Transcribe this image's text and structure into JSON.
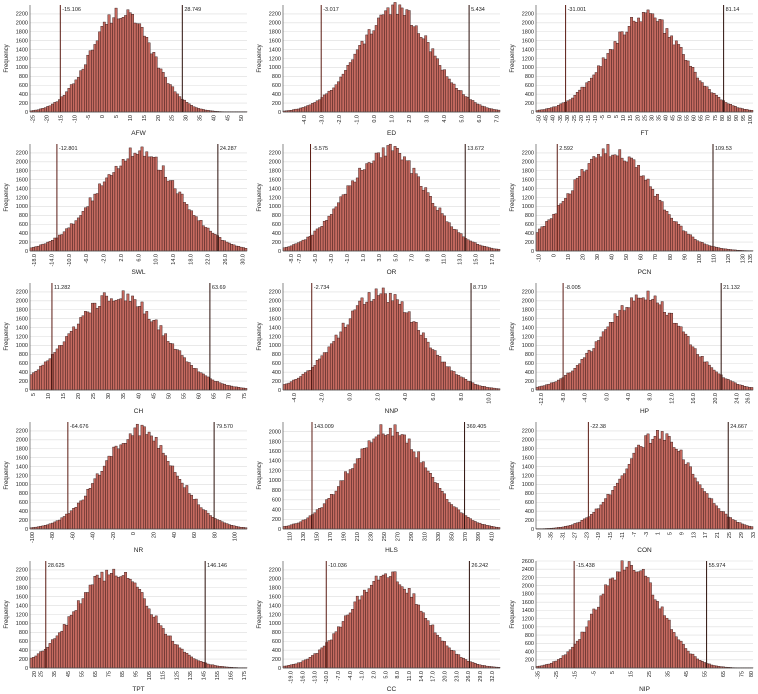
{
  "chart_data": [
    {
      "type": "bar",
      "xlabel": "AFW",
      "ylabel": "Frequency",
      "ylim": [
        0,
        2400
      ],
      "yticks": [
        0,
        200,
        400,
        600,
        800,
        1000,
        1200,
        1400,
        1600,
        1800,
        2000,
        2200
      ],
      "xlim": [
        -26,
        52
      ],
      "xticks": [
        "-25",
        "-20",
        "-15",
        "-10",
        "-5",
        "0",
        "5",
        "10",
        "15",
        "20",
        "25",
        "30",
        "35",
        "40",
        "45",
        "50"
      ],
      "mean": 6.8,
      "sd": 10.9,
      "peak": 2250,
      "lower": {
        "label": "-15.106",
        "value": -15.106
      },
      "upper": {
        "label": "28.749",
        "value": 28.749
      }
    },
    {
      "type": "bar",
      "xlabel": "ED",
      "ylabel": "Frequency",
      "ylim": [
        0,
        2400
      ],
      "yticks": [
        0,
        200,
        400,
        600,
        800,
        1000,
        1200,
        1400,
        1600,
        1800,
        2000,
        2200
      ],
      "xlim": [
        -5.2,
        7.2
      ],
      "xticks": [
        "-4.0",
        "-3.0",
        "-2.0",
        "-1.0",
        "0.0",
        "1.0",
        "2.0",
        "3.0",
        "4.0",
        "5.0",
        "6.0",
        "7.0"
      ],
      "mean": 1.2,
      "sd": 2.1,
      "peak": 2300,
      "lower": {
        "label": "-3.017",
        "value": -3.017
      },
      "upper": {
        "label": "5.434",
        "value": 5.434
      }
    },
    {
      "type": "bar",
      "xlabel": "FT",
      "ylabel": "Frequency",
      "ylim": [
        0,
        2400
      ],
      "yticks": [
        0,
        200,
        400,
        600,
        800,
        1000,
        1200,
        1400,
        1600,
        1800,
        2000,
        2200
      ],
      "xlim": [
        -52,
        102
      ],
      "xticks": [
        "-50",
        "-45",
        "-40",
        "-35",
        "-30",
        "-25",
        "-20",
        "-15",
        "-10",
        "-5",
        "0",
        "5",
        "10",
        "15",
        "20",
        "25",
        "30",
        "35",
        "40",
        "45",
        "50",
        "55",
        "60",
        "65",
        "70",
        "75",
        "80",
        "85",
        "90",
        "95",
        "100"
      ],
      "mean": 25.5,
      "sd": 26.7,
      "peak": 2150,
      "lower": {
        "label": "-31.001",
        "value": -31.001
      },
      "upper": {
        "label": "81.14",
        "value": 81.14
      }
    },
    {
      "type": "bar",
      "xlabel": "SWL",
      "ylabel": "Frequency",
      "ylim": [
        0,
        2400
      ],
      "yticks": [
        0,
        200,
        400,
        600,
        800,
        1000,
        1200,
        1400,
        1600,
        1800,
        2000,
        2200
      ],
      "xlim": [
        -19,
        31
      ],
      "xticks": [
        "-18.0",
        "-14.0",
        "-10.0",
        "-6.0",
        "-2.0",
        "2.0",
        "6.0",
        "10.0",
        "14.0",
        "18.0",
        "22.0",
        "26.0",
        "30.0"
      ],
      "mean": 5.8,
      "sd": 9.4,
      "peak": 2200,
      "lower": {
        "label": "-12.801",
        "value": -12.801
      },
      "upper": {
        "label": "24.287",
        "value": 24.287
      }
    },
    {
      "type": "bar",
      "xlabel": "OR",
      "ylabel": "Frequency",
      "ylim": [
        0,
        2400
      ],
      "yticks": [
        0,
        200,
        400,
        600,
        800,
        1000,
        1200,
        1400,
        1600,
        1800,
        2000,
        2200
      ],
      "xlim": [
        -9,
        18
      ],
      "xticks": [
        "-8.0",
        "-7.0",
        "-5.0",
        "-3.0",
        "-1.0",
        "1.0",
        "3.0",
        "5.0",
        "7.0",
        "9.0",
        "11.0",
        "13.0",
        "15.0",
        "17.0"
      ],
      "mean": 3.9,
      "sd": 4.9,
      "peak": 2250,
      "lower": {
        "label": "-5.575",
        "value": -5.575
      },
      "upper": {
        "label": "13.672",
        "value": 13.672
      }
    },
    {
      "type": "bar",
      "xlabel": "PCN",
      "ylabel": "Frequency",
      "ylim": [
        0,
        2400
      ],
      "yticks": [
        0,
        200,
        400,
        600,
        800,
        1000,
        1200,
        1400,
        1600,
        1800,
        2000,
        2200
      ],
      "xlim": [
        -12,
        137
      ],
      "xticks": [
        "-10",
        "0",
        "10",
        "20",
        "30",
        "40",
        "50",
        "60",
        "70",
        "80",
        "90",
        "100",
        "110",
        "120",
        "130",
        "135"
      ],
      "mean": 40,
      "sd": 28,
      "peak": 2250,
      "lower": {
        "label": "2.592",
        "value": 2.592
      },
      "upper": {
        "label": "109.53",
        "value": 109.53
      }
    },
    {
      "type": "bar",
      "xlabel": "CH",
      "ylabel": "Frequency",
      "ylim": [
        0,
        2400
      ],
      "yticks": [
        0,
        200,
        400,
        600,
        800,
        1000,
        1200,
        1400,
        1600,
        1800,
        2000,
        2200
      ],
      "xlim": [
        4,
        76
      ],
      "xticks": [
        "5",
        "10",
        "15",
        "20",
        "25",
        "30",
        "35",
        "40",
        "45",
        "50",
        "55",
        "60",
        "65",
        "70",
        "75"
      ],
      "mean": 33,
      "sd": 15,
      "peak": 2150,
      "lower": {
        "label": "11.282",
        "value": 11.282
      },
      "upper": {
        "label": "63.69",
        "value": 63.69
      }
    },
    {
      "type": "bar",
      "xlabel": "NNP",
      "ylabel": "Frequency",
      "ylim": [
        0,
        2400
      ],
      "yticks": [
        0,
        200,
        400,
        600,
        800,
        1000,
        1200,
        1400,
        1600,
        1800,
        2000,
        2200
      ],
      "xlim": [
        -4.8,
        10.8
      ],
      "xticks": [
        "-4.0",
        "-2.0",
        "0.0",
        "2.0",
        "4.0",
        "6.0",
        "8.0",
        "10.0"
      ],
      "mean": 2.2,
      "sd": 2.9,
      "peak": 2150,
      "lower": {
        "label": "-2.734",
        "value": -2.734
      },
      "upper": {
        "label": "8.719",
        "value": 8.719
      }
    },
    {
      "type": "bar",
      "xlabel": "HP",
      "ylabel": "Frequency",
      "ylim": [
        0,
        2400
      ],
      "yticks": [
        0,
        200,
        400,
        600,
        800,
        1000,
        1200,
        1400,
        1600,
        1800,
        2000,
        2200
      ],
      "xlim": [
        -13,
        27
      ],
      "xticks": [
        "-12.0",
        "-8.0",
        "-4.0",
        "0.0",
        "4.0",
        "8.0",
        "12.0",
        "16.0",
        "20.0",
        "24.0",
        "26.0"
      ],
      "mean": 6.8,
      "sd": 7.4,
      "peak": 2100,
      "lower": {
        "label": "-8.005",
        "value": -8.005
      },
      "upper": {
        "label": "21.132",
        "value": 21.132
      }
    },
    {
      "type": "bar",
      "xlabel": "NR",
      "ylabel": "Frequency",
      "ylim": [
        0,
        2400
      ],
      "yticks": [
        0,
        200,
        400,
        600,
        800,
        1000,
        1200,
        1400,
        1600,
        1800,
        2000,
        2200
      ],
      "xlim": [
        -102,
        112
      ],
      "xticks": [
        "-100",
        "-80",
        "-60",
        "-40",
        "-20",
        "0",
        "20",
        "40",
        "60",
        "80",
        "100"
      ],
      "mean": 5,
      "sd": 36,
      "peak": 2200,
      "lower": {
        "label": "-64.676",
        "value": -64.676
      },
      "upper": {
        "label": "79.570",
        "value": 79.57
      }
    },
    {
      "type": "bar",
      "xlabel": "HLS",
      "ylabel": "Frequency",
      "ylim": [
        0,
        2200
      ],
      "yticks": [
        0,
        200,
        400,
        600,
        800,
        1000,
        1200,
        1400,
        1600,
        1800,
        2000
      ],
      "xlim": [
        100,
        422
      ],
      "xticks": [
        "110",
        "130",
        "150",
        "170",
        "190",
        "210",
        "230",
        "250",
        "270",
        "290",
        "310",
        "330",
        "350",
        "370",
        "390",
        "410"
      ],
      "mean": 256,
      "sd": 57,
      "peak": 2050,
      "lower": {
        "label": "143.009",
        "value": 143.009
      },
      "upper": {
        "label": "369.405",
        "value": 369.405
      }
    },
    {
      "type": "bar",
      "xlabel": "CON",
      "ylabel": "Frequency",
      "ylim": [
        0,
        2400
      ],
      "yticks": [
        0,
        200,
        400,
        600,
        800,
        1000,
        1200,
        1400,
        1600,
        1800,
        2000,
        2200
      ],
      "xlim": [
        -40,
        33
      ],
      "xticks": [
        "-39",
        "-35",
        "-31",
        "-27",
        "-23",
        "-19",
        "-15",
        "-11",
        "-7",
        "-3",
        "1",
        "5",
        "9",
        "13",
        "17",
        "21",
        "25",
        "29",
        "33"
      ],
      "mean": 1.2,
      "sd": 11.7,
      "peak": 2100,
      "lower": {
        "label": "-22.38",
        "value": -22.38
      },
      "upper": {
        "label": "24.667",
        "value": 24.667
      }
    },
    {
      "type": "bar",
      "xlabel": "TPT",
      "ylabel": "Frequency",
      "ylim": [
        0,
        2400
      ],
      "yticks": [
        0,
        200,
        400,
        600,
        800,
        1000,
        1200,
        1400,
        1600,
        1800,
        2000,
        2200
      ],
      "xlim": [
        17,
        177
      ],
      "xticks": [
        "20",
        "25",
        "35",
        "45",
        "55",
        "65",
        "75",
        "85",
        "95",
        "105",
        "115",
        "125",
        "135",
        "145",
        "155",
        "165",
        "175"
      ],
      "mean": 78,
      "sd": 28,
      "peak": 2150,
      "lower": {
        "label": "28.625",
        "value": 28.625
      },
      "upper": {
        "label": "146.146",
        "value": 146.146
      }
    },
    {
      "type": "bar",
      "xlabel": "CC",
      "ylabel": "Frequency",
      "ylim": [
        0,
        2400
      ],
      "yticks": [
        0,
        200,
        400,
        600,
        800,
        1000,
        1200,
        1400,
        1600,
        1800,
        2000,
        2200
      ],
      "xlim": [
        -21,
        34
      ],
      "xticks": [
        "-19.0",
        "-16.0",
        "-13.0",
        "-10.0",
        "-7.0",
        "-4.0",
        "-1.0",
        "2.0",
        "5.0",
        "8.0",
        "11.0",
        "14.0",
        "17.0",
        "20.0",
        "23.0",
        "26.0",
        "29.0",
        "32.0"
      ],
      "mean": 5.1,
      "sd": 9.2,
      "peak": 2100,
      "lower": {
        "label": "-10.036",
        "value": -10.036
      },
      "upper": {
        "label": "26.242",
        "value": 26.242
      }
    },
    {
      "type": "bar",
      "xlabel": "NIP",
      "ylabel": "Frequency",
      "ylim": [
        0,
        2600
      ],
      "yticks": [
        0,
        200,
        400,
        600,
        800,
        1000,
        1200,
        1400,
        1600,
        1800,
        2000,
        2200,
        2400,
        2600
      ],
      "xlim": [
        -36,
        81
      ],
      "xticks": [
        "-35",
        "-25",
        "-15",
        "-5",
        "5",
        "15",
        "25",
        "35",
        "45",
        "55",
        "65",
        "75",
        "80"
      ],
      "mean": 14,
      "sd": 17,
      "peak": 2500,
      "lower": {
        "label": "-15.438",
        "value": -15.438
      },
      "upper": {
        "label": "55.974",
        "value": 55.974
      }
    }
  ]
}
